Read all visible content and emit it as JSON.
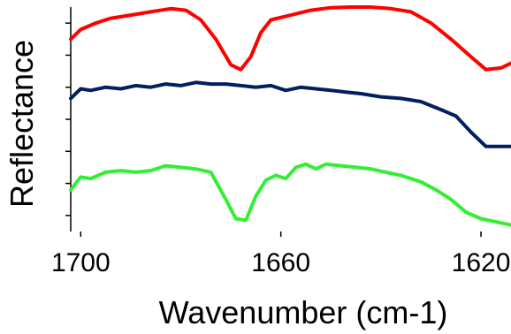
{
  "chart_data": {
    "type": "line",
    "title": "",
    "xlabel": "Wavenumber (cm-1)",
    "ylabel": "Reflectance",
    "x_axis": {
      "reversed": true,
      "xlim": [
        1702,
        1614
      ],
      "ticks": [
        1700,
        1660,
        1620
      ]
    },
    "y_axis": {
      "tick_labels_shown": false,
      "tick_count": 7,
      "ylim": [
        0,
        7
      ]
    },
    "grid": false,
    "legend": "none",
    "series": [
      {
        "color": "#ff0000",
        "points": [
          [
            1702,
            6.0
          ],
          [
            1700,
            6.3
          ],
          [
            1697,
            6.5
          ],
          [
            1694,
            6.65
          ],
          [
            1690,
            6.75
          ],
          [
            1686,
            6.85
          ],
          [
            1682,
            6.95
          ],
          [
            1679,
            6.9
          ],
          [
            1676,
            6.6
          ],
          [
            1673,
            6.0
          ],
          [
            1670,
            5.2
          ],
          [
            1668,
            5.05
          ],
          [
            1666,
            5.45
          ],
          [
            1664,
            6.2
          ],
          [
            1662,
            6.6
          ],
          [
            1658,
            6.75
          ],
          [
            1654,
            6.9
          ],
          [
            1650,
            6.98
          ],
          [
            1646,
            7.0
          ],
          [
            1642,
            7.0
          ],
          [
            1638,
            6.95
          ],
          [
            1634,
            6.85
          ],
          [
            1630,
            6.5
          ],
          [
            1626,
            6.0
          ],
          [
            1622,
            5.45
          ],
          [
            1619,
            5.05
          ],
          [
            1616,
            5.1
          ],
          [
            1614,
            5.25
          ]
        ]
      },
      {
        "color": "#002060",
        "points": [
          [
            1702,
            4.15
          ],
          [
            1700,
            4.45
          ],
          [
            1698,
            4.4
          ],
          [
            1695,
            4.5
          ],
          [
            1692,
            4.45
          ],
          [
            1689,
            4.55
          ],
          [
            1686,
            4.5
          ],
          [
            1683,
            4.6
          ],
          [
            1680,
            4.55
          ],
          [
            1677,
            4.65
          ],
          [
            1674,
            4.6
          ],
          [
            1671,
            4.6
          ],
          [
            1668,
            4.55
          ],
          [
            1665,
            4.5
          ],
          [
            1662,
            4.55
          ],
          [
            1659,
            4.4
          ],
          [
            1656,
            4.5
          ],
          [
            1653,
            4.45
          ],
          [
            1650,
            4.4
          ],
          [
            1647,
            4.35
          ],
          [
            1644,
            4.3
          ],
          [
            1640,
            4.2
          ],
          [
            1636,
            4.15
          ],
          [
            1632,
            4.05
          ],
          [
            1628,
            3.8
          ],
          [
            1625,
            3.6
          ],
          [
            1622,
            3.1
          ],
          [
            1619,
            2.65
          ],
          [
            1616,
            2.65
          ],
          [
            1614,
            2.65
          ]
        ]
      },
      {
        "color": "#33ee33",
        "points": [
          [
            1702,
            1.3
          ],
          [
            1700,
            1.7
          ],
          [
            1698,
            1.65
          ],
          [
            1695,
            1.85
          ],
          [
            1692,
            1.9
          ],
          [
            1689,
            1.85
          ],
          [
            1686,
            1.9
          ],
          [
            1683,
            2.05
          ],
          [
            1680,
            2.0
          ],
          [
            1677,
            1.95
          ],
          [
            1674,
            1.85
          ],
          [
            1671,
            1.0
          ],
          [
            1669,
            0.4
          ],
          [
            1667,
            0.35
          ],
          [
            1665,
            1.1
          ],
          [
            1663,
            1.6
          ],
          [
            1661,
            1.75
          ],
          [
            1659,
            1.65
          ],
          [
            1657,
            2.0
          ],
          [
            1655,
            2.1
          ],
          [
            1653,
            1.95
          ],
          [
            1651,
            2.1
          ],
          [
            1648,
            2.05
          ],
          [
            1645,
            2.0
          ],
          [
            1642,
            1.95
          ],
          [
            1639,
            1.85
          ],
          [
            1636,
            1.75
          ],
          [
            1632,
            1.55
          ],
          [
            1629,
            1.3
          ],
          [
            1626,
            1.0
          ],
          [
            1623,
            0.6
          ],
          [
            1620,
            0.4
          ],
          [
            1617,
            0.3
          ],
          [
            1614,
            0.2
          ]
        ]
      }
    ]
  }
}
